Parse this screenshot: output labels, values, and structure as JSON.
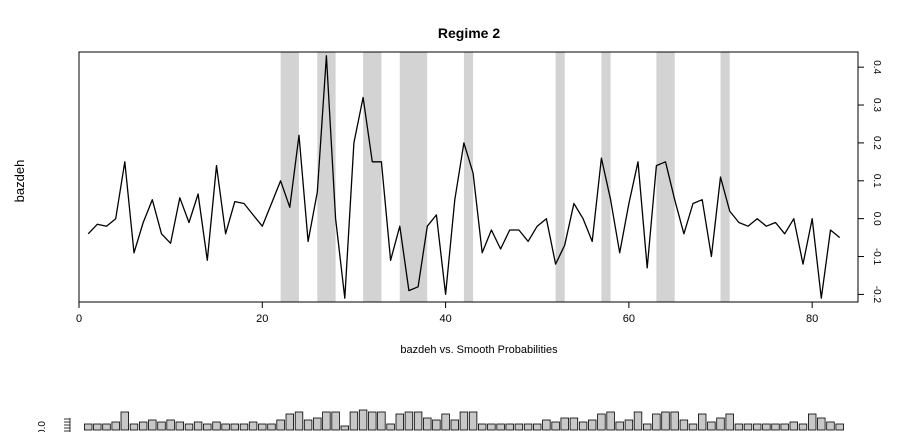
{
  "chart_data": [
    {
      "type": "line",
      "title": "Regime 2",
      "xlabel": "bazdeh vs. Smooth Probabilities",
      "ylabel": "bazdeh",
      "xlim": [
        0,
        85
      ],
      "ylim": [
        -0.22,
        0.44
      ],
      "x_ticks": [
        {
          "value": 0,
          "label": "0"
        },
        {
          "value": 20,
          "label": "20"
        },
        {
          "value": 40,
          "label": "40"
        },
        {
          "value": 60,
          "label": "60"
        },
        {
          "value": 80,
          "label": "80"
        }
      ],
      "y_ticks_right": [
        {
          "value": -0.2,
          "label": "-0.2"
        },
        {
          "value": -0.1,
          "label": "-0.1"
        },
        {
          "value": 0.0,
          "label": "0.0"
        },
        {
          "value": 0.1,
          "label": "0.1"
        },
        {
          "value": 0.2,
          "label": "0.2"
        },
        {
          "value": 0.3,
          "label": "0.3"
        },
        {
          "value": 0.4,
          "label": "0.4"
        }
      ],
      "grid": false,
      "series": [
        {
          "x": [
            1,
            2,
            3,
            4,
            5,
            6,
            7,
            8,
            9,
            10,
            11,
            12,
            13,
            14,
            15,
            16,
            17,
            18,
            19,
            20,
            21,
            22,
            23,
            24,
            25,
            26,
            27,
            28,
            29,
            30,
            31,
            32,
            33,
            34,
            35,
            36,
            37,
            38,
            39,
            40,
            41,
            42,
            43,
            44,
            45,
            46,
            47,
            48,
            49,
            50,
            51,
            52,
            53,
            54,
            55,
            56,
            57,
            58,
            59,
            60,
            61,
            62,
            63,
            64,
            65,
            66,
            67,
            68,
            69,
            70,
            71,
            72,
            73,
            74,
            75,
            76,
            77,
            78,
            79,
            80,
            81,
            82,
            83
          ],
          "values": [
            -0.04,
            -0.015,
            -0.02,
            0.0,
            0.15,
            -0.09,
            -0.01,
            0.05,
            -0.04,
            -0.065,
            0.055,
            -0.01,
            0.065,
            -0.11,
            0.14,
            -0.04,
            0.045,
            0.04,
            0.01,
            -0.02,
            0.04,
            0.1,
            0.03,
            0.22,
            -0.06,
            0.07,
            0.43,
            0.0,
            -0.21,
            0.2,
            0.32,
            0.15,
            0.15,
            -0.11,
            -0.02,
            -0.19,
            -0.18,
            -0.02,
            0.01,
            -0.2,
            0.05,
            0.2,
            0.12,
            -0.09,
            -0.03,
            -0.08,
            -0.03,
            -0.03,
            -0.06,
            -0.02,
            0.0,
            -0.12,
            -0.07,
            0.04,
            0.0,
            -0.06,
            0.16,
            0.05,
            -0.09,
            0.04,
            0.15,
            -0.13,
            0.14,
            0.15,
            0.05,
            -0.04,
            0.04,
            0.05,
            -0.1,
            0.11,
            0.02,
            -0.01,
            -0.02,
            0.0,
            -0.02,
            -0.01,
            -0.04,
            0.0,
            -0.12,
            0.0,
            -0.21,
            -0.03,
            -0.05
          ]
        }
      ],
      "shaded_intervals": [
        [
          22,
          24
        ],
        [
          26,
          28
        ],
        [
          31,
          33
        ],
        [
          35,
          38
        ],
        [
          42,
          43
        ],
        [
          52,
          53
        ],
        [
          57,
          58
        ],
        [
          63,
          65
        ],
        [
          70,
          71
        ]
      ]
    },
    {
      "type": "bar",
      "title": "",
      "ylabel": "0.0",
      "x": [
        1,
        2,
        3,
        4,
        5,
        6,
        7,
        8,
        9,
        10,
        11,
        12,
        13,
        14,
        15,
        16,
        17,
        18,
        19,
        20,
        21,
        22,
        23,
        24,
        25,
        26,
        27,
        28,
        29,
        30,
        31,
        32,
        33,
        34,
        35,
        36,
        37,
        38,
        39,
        40,
        41,
        42,
        43,
        44,
        45,
        46,
        47,
        48,
        49,
        50,
        51,
        52,
        53,
        54,
        55,
        56,
        57,
        58,
        59,
        60,
        61,
        62,
        63,
        64,
        65,
        66,
        67,
        68,
        69,
        70,
        71,
        72,
        73,
        74,
        75,
        76,
        77,
        78,
        79,
        80,
        81,
        82,
        83
      ],
      "values": [
        0.3,
        0.3,
        0.3,
        0.4,
        0.9,
        0.3,
        0.4,
        0.5,
        0.4,
        0.5,
        0.4,
        0.3,
        0.4,
        0.3,
        0.4,
        0.3,
        0.3,
        0.3,
        0.4,
        0.3,
        0.3,
        0.5,
        0.8,
        0.9,
        0.5,
        0.6,
        0.9,
        0.9,
        0.2,
        0.9,
        1.0,
        0.9,
        0.9,
        0.3,
        0.8,
        0.9,
        0.9,
        0.6,
        0.5,
        0.8,
        0.5,
        0.9,
        0.9,
        0.3,
        0.3,
        0.3,
        0.3,
        0.3,
        0.3,
        0.3,
        0.5,
        0.4,
        0.6,
        0.6,
        0.4,
        0.5,
        0.8,
        0.9,
        0.4,
        0.5,
        0.9,
        0.3,
        0.8,
        0.9,
        0.9,
        0.5,
        0.3,
        0.8,
        0.4,
        0.6,
        0.8,
        0.3,
        0.3,
        0.3,
        0.3,
        0.3,
        0.3,
        0.4,
        0.3,
        0.8,
        0.6,
        0.4,
        0.3
      ],
      "ylim": [
        0,
        1
      ]
    }
  ]
}
